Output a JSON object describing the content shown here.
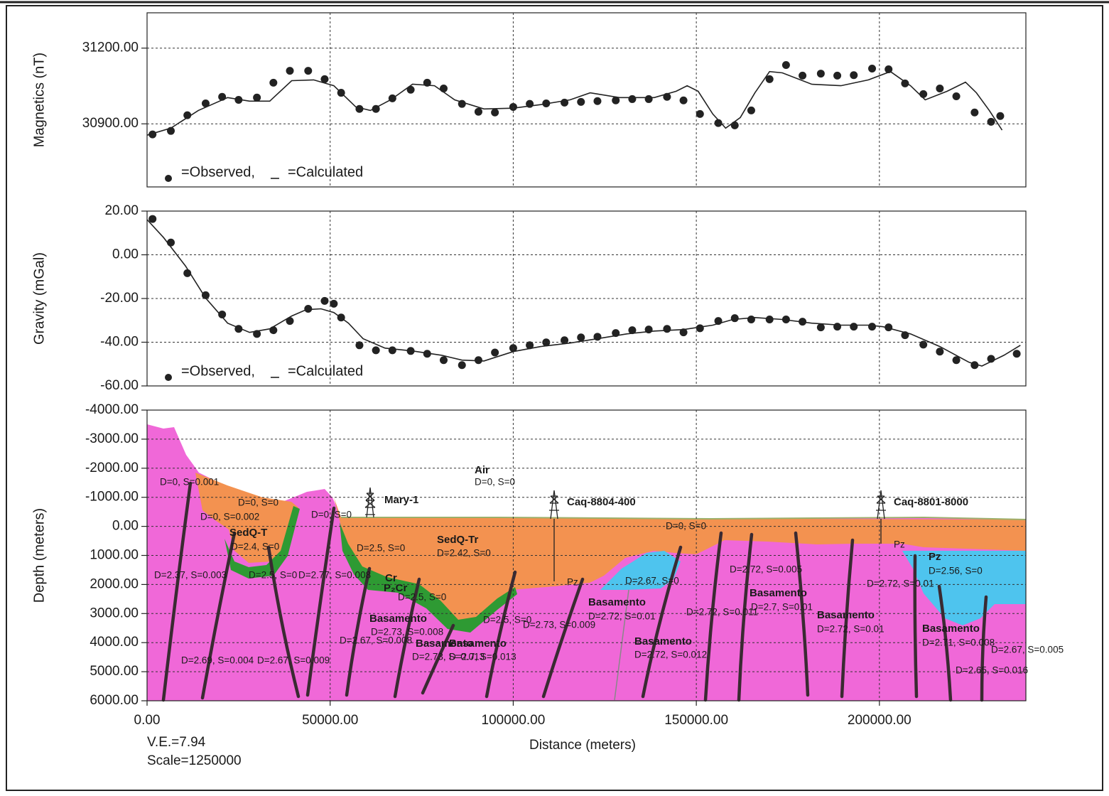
{
  "chart_data": [
    {
      "type": "line",
      "ylabel": "Magnetics (nT)",
      "xlim": [
        0,
        240000
      ],
      "xticks": [
        50000,
        100000,
        150000,
        200000
      ],
      "ylim": [
        30650,
        31340
      ],
      "yticks": [
        {
          "value": 30900,
          "label": "30900.00"
        },
        {
          "value": 31200,
          "label": "31200.00"
        }
      ],
      "grid": true,
      "legend": "lower left",
      "series": [
        {
          "name": "=Observed,",
          "mode": "markers",
          "color": "#222222",
          "x": [
            1500,
            6500,
            11000,
            16000,
            20500,
            25000,
            30000,
            34500,
            39000,
            44000,
            48500,
            53000,
            58000,
            62500,
            67000,
            72000,
            76500,
            81000,
            86000,
            90500,
            95000,
            100000,
            104500,
            109000,
            114000,
            118500,
            123000,
            128000,
            132500,
            137000,
            142000,
            146500,
            151000,
            156000,
            160500,
            165000,
            170000,
            174500,
            179000,
            184000,
            188500,
            193000,
            198000,
            202500,
            207000,
            212000,
            216500,
            221000,
            226000,
            230500,
            233000
          ],
          "values": [
            30858,
            30872,
            30934,
            30981,
            31007,
            30995,
            31004,
            31063,
            31110,
            31110,
            31077,
            31023,
            30959,
            30959,
            31001,
            31035,
            31063,
            31040,
            30979,
            30948,
            30945,
            30967,
            30979,
            30981,
            30984,
            30987,
            30990,
            30993,
            30998,
            30998,
            31007,
            30993,
            30939,
            30903,
            30894,
            30953,
            31077,
            31133,
            31091,
            31099,
            31091,
            31093,
            31119,
            31116,
            31060,
            31018,
            31040,
            31009,
            30945,
            30908,
            30931
          ]
        },
        {
          "name": "=Calculated",
          "mode": "line",
          "color": "#222222",
          "x": [
            0,
            6500,
            14000,
            22000,
            28000,
            33500,
            39500,
            45500,
            51000,
            57000,
            61000,
            66500,
            72500,
            78500,
            84000,
            92000,
            100000,
            107500,
            115500,
            121000,
            129000,
            138500,
            144500,
            147500,
            150500,
            154500,
            158000,
            162000,
            166000,
            170000,
            173500,
            181500,
            189500,
            197000,
            203000,
            208500,
            212500,
            218500,
            223500,
            226500,
            230000,
            233500
          ],
          "values": [
            30855,
            30883,
            30953,
            31004,
            30990,
            30990,
            31071,
            31074,
            31051,
            30967,
            30953,
            30995,
            31057,
            31051,
            30995,
            30959,
            30962,
            30976,
            30995,
            31023,
            31004,
            31004,
            31029,
            31051,
            31029,
            30939,
            30883,
            30925,
            31023,
            31107,
            31102,
            31057,
            31051,
            31074,
            31107,
            31051,
            30995,
            31029,
            31065,
            31023,
            30953,
            30875
          ]
        }
      ]
    },
    {
      "type": "line",
      "ylabel": "Gravity (mGal)",
      "xlim": [
        0,
        240000
      ],
      "xticks": [
        50000,
        100000,
        150000,
        200000
      ],
      "ylim": [
        -60,
        20
      ],
      "yticks": [
        {
          "value": -60,
          "label": "-60.00"
        },
        {
          "value": -40,
          "label": "-40.00"
        },
        {
          "value": -20,
          "label": "-20.00"
        },
        {
          "value": 0,
          "label": "0.00"
        },
        {
          "value": 20,
          "label": "20.00"
        }
      ],
      "grid": true,
      "legend": "lower left",
      "series": [
        {
          "name": "=Observed,",
          "mode": "markers",
          "color": "#222222",
          "x": [
            1500,
            6500,
            11000,
            16000,
            20500,
            25000,
            30000,
            34500,
            39000,
            44000,
            48500,
            51000,
            53000,
            58000,
            62500,
            67000,
            72000,
            76500,
            81000,
            86000,
            90500,
            95000,
            100000,
            104500,
            109000,
            114000,
            118500,
            123000,
            128000,
            132500,
            137000,
            142000,
            146500,
            151000,
            156000,
            160500,
            165000,
            170000,
            174500,
            179000,
            184000,
            188500,
            193000,
            198000,
            202500,
            207000,
            212000,
            216500,
            221000,
            226000,
            230500,
            237500
          ],
          "values": [
            16.4,
            5.6,
            -8.4,
            -18.5,
            -27.3,
            -33.9,
            -36.2,
            -34.5,
            -30.3,
            -24.7,
            -21.1,
            -22.4,
            -28.7,
            -41.4,
            -43.7,
            -43.7,
            -44.0,
            -45.3,
            -48.2,
            -50.5,
            -48.2,
            -44.7,
            -42.7,
            -41.4,
            -40.1,
            -39.1,
            -37.8,
            -37.5,
            -35.8,
            -34.5,
            -34.2,
            -33.9,
            -35.5,
            -33.6,
            -30.3,
            -29.0,
            -29.6,
            -29.6,
            -29.6,
            -30.6,
            -33.2,
            -32.9,
            -32.9,
            -32.9,
            -33.2,
            -36.8,
            -41.1,
            -44.3,
            -48.2,
            -50.5,
            -47.6,
            -45.3
          ]
        },
        {
          "name": "=Calculated",
          "mode": "line",
          "color": "#222222",
          "x": [
            0,
            4500,
            10500,
            16000,
            22000,
            28000,
            33500,
            39500,
            43500,
            47500,
            51000,
            55000,
            59000,
            65000,
            72500,
            80500,
            86000,
            92000,
            100000,
            107500,
            115500,
            123000,
            131000,
            138500,
            146500,
            154500,
            160000,
            166000,
            173500,
            181500,
            189500,
            197000,
            201000,
            208500,
            216500,
            224500,
            228000,
            234000,
            238500
          ],
          "values": [
            16.1,
            7.9,
            -5.1,
            -19.8,
            -31.3,
            -35.5,
            -33.9,
            -28.0,
            -25.1,
            -24.7,
            -26.4,
            -31.3,
            -38.4,
            -42.7,
            -44.0,
            -46.0,
            -48.2,
            -48.6,
            -44.3,
            -42.0,
            -40.4,
            -38.4,
            -36.2,
            -34.9,
            -34.2,
            -32.2,
            -29.6,
            -28.7,
            -29.6,
            -31.3,
            -32.2,
            -32.2,
            -32.9,
            -36.2,
            -42.0,
            -49.2,
            -50.9,
            -46.0,
            -41.4
          ]
        }
      ]
    },
    {
      "type": "section",
      "ylabel": "Depth (meters)",
      "xlabel": "Distance (meters)",
      "xlim": [
        0,
        240000
      ],
      "xticks": [
        {
          "value": 0,
          "label": "0.00"
        },
        {
          "value": 50000,
          "label": "50000.00"
        },
        {
          "value": 100000,
          "label": "100000.00"
        },
        {
          "value": 150000,
          "label": "150000.00"
        },
        {
          "value": 200000,
          "label": "200000.00"
        }
      ],
      "ylim": [
        6000,
        -4000
      ],
      "yticks": [
        {
          "value": -4000,
          "label": "-4000.00"
        },
        {
          "value": -3000,
          "label": "-3000.00"
        },
        {
          "value": -2000,
          "label": "-2000.00"
        },
        {
          "value": -1000,
          "label": "-1000.00"
        },
        {
          "value": 0,
          "label": "0.00"
        },
        {
          "value": 1000,
          "label": "1000.00"
        },
        {
          "value": 2000,
          "label": "2000.00"
        },
        {
          "value": 3000,
          "label": "3000.00"
        },
        {
          "value": 4000,
          "label": "4000.00"
        },
        {
          "value": 5000,
          "label": "5000.00"
        },
        {
          "value": 6000,
          "label": "6000.00"
        }
      ],
      "grid": true,
      "vertical_exaggeration": "V.E.=7.94",
      "scale": "Scale=1250000",
      "labels": [
        "Air",
        "D=0, S=0",
        "Mary-1",
        "Caq-8804-400",
        "Caq-8801-8000",
        "D=0, S=0.001",
        "D=0, S=0",
        "D=0, S=0.002",
        "SedQ-T",
        "D=2.4, S=0",
        "D=0, S=0",
        "D=2.37, S=0.003",
        "D=2.5, S=0",
        "D=2.77, S=0.008",
        "D=2.5, S=0",
        "SedQ-Tr",
        "D=2.42, S=0",
        "Cr",
        "P₂Cr",
        "D=2.5, S=0",
        "Pz",
        "D=0, S=0",
        "Pz",
        "Pz",
        "D=2.56, S=0",
        "D=2.72, S=0.005",
        "D=2.67, S=0",
        "D=2.72, S=0.01",
        "Basamento",
        "D=2.7, S=0.01",
        "Basamento",
        "D=2.72, S=0.01",
        "D=2.72, S=0.011",
        "Basamento",
        "D=2.72, S=0.01",
        "Basamento",
        "D=2.73, S=0.008",
        "D=2.5, S=0",
        "D=2.73, S=0.009",
        "Basamento",
        "D=2.71, S=0.008",
        "D=2.67, S=0.008",
        "Basamento",
        "Basamento",
        "Basamento",
        "D=2.72, S=0.012",
        "D=2.67, S=0.005",
        "D=2.73, S=0.013",
        "D=2.7, S=0.013",
        "D=2.69, S=0.004",
        "D=2.67, S=0.009",
        "D=2.65, S=0.016"
      ]
    }
  ]
}
